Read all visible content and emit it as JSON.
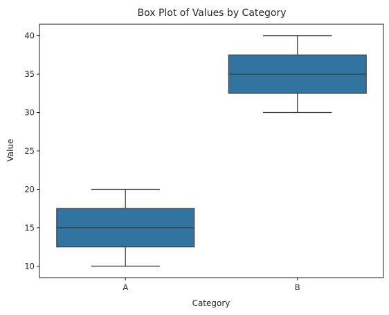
{
  "chart_data": {
    "type": "box",
    "title": "Box Plot of Values by Category",
    "xlabel": "Category",
    "ylabel": "Value",
    "ylim": [
      8.5,
      41.5
    ],
    "yticks": [
      10,
      15,
      20,
      25,
      30,
      35,
      40
    ],
    "categories": [
      "A",
      "B"
    ],
    "boxes": [
      {
        "category": "A",
        "min": 10,
        "q1": 12.5,
        "median": 15,
        "q3": 17.5,
        "max": 20
      },
      {
        "category": "B",
        "min": 30,
        "q1": 32.5,
        "median": 35,
        "q3": 37.5,
        "max": 40
      }
    ],
    "box_color": "#3274a1",
    "line_color": "#3d3d3d",
    "grid": false
  }
}
